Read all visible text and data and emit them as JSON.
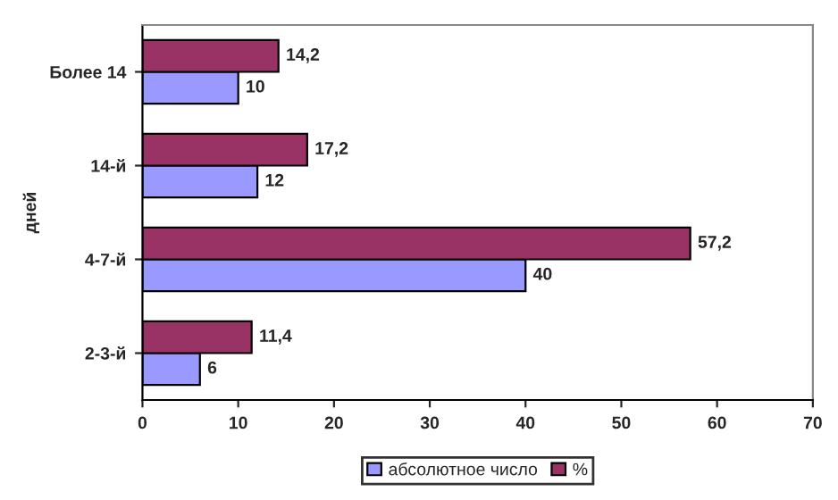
{
  "chart_data": {
    "type": "bar",
    "orientation": "horizontal",
    "ylabel": "дней",
    "categories": [
      "Более 14",
      "14-й",
      "4-7-й",
      "2-3-й"
    ],
    "series": [
      {
        "name": "абсолютное число",
        "color": "#9999ff",
        "values": [
          10,
          12,
          40,
          6
        ],
        "value_labels": [
          "10",
          "12",
          "40",
          "6"
        ]
      },
      {
        "name": "%",
        "color": "#993366",
        "values": [
          14.2,
          17.2,
          57.2,
          11.4
        ],
        "value_labels": [
          "14,2",
          "17,2",
          "57,2",
          "11,4"
        ]
      }
    ],
    "xlim": [
      0,
      70
    ],
    "xticks": [
      0,
      10,
      20,
      30,
      40,
      50,
      60,
      70
    ],
    "grid": false,
    "legend": "bottom"
  }
}
